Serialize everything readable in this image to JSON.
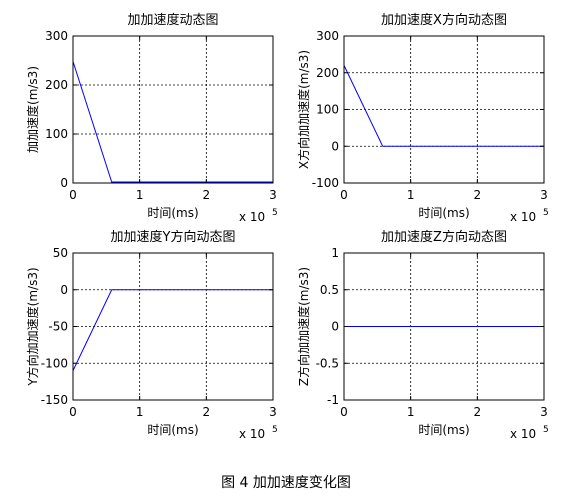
{
  "figure_caption": "图 4  加加速度变化图",
  "chart_data": [
    {
      "type": "line",
      "title": "加加速度动态图",
      "xlabel": "时间(ms)",
      "ylabel": "加加速度(m/s3)",
      "x_multiplier": "x 10",
      "x_exponent": "5",
      "xlim": [
        0,
        3
      ],
      "ylim": [
        0,
        300
      ],
      "xticks": [
        0,
        1,
        2,
        3
      ],
      "yticks": [
        0,
        100,
        200,
        300
      ],
      "grid": true,
      "line_color": "#0000ff",
      "series": [
        {
          "x": [
            0,
            0.58,
            3
          ],
          "y": [
            248,
            2,
            2
          ]
        }
      ]
    },
    {
      "type": "line",
      "title": "加加速度X方向动态图",
      "xlabel": "时间(ms)",
      "ylabel": "X方向加加速度(m/s3)",
      "x_multiplier": "x 10",
      "x_exponent": "5",
      "xlim": [
        0,
        3
      ],
      "ylim": [
        -100,
        300
      ],
      "xticks": [
        0,
        1,
        2,
        3
      ],
      "yticks": [
        -100,
        0,
        100,
        200,
        300
      ],
      "grid": true,
      "line_color": "#0000ff",
      "series": [
        {
          "x": [
            0,
            0.58,
            3
          ],
          "y": [
            220,
            0,
            0
          ]
        }
      ]
    },
    {
      "type": "line",
      "title": "加加速度Y方向动态图",
      "xlabel": "时间(ms)",
      "ylabel": "Y方向加加速度(m/s3)",
      "x_multiplier": "x 10",
      "x_exponent": "5",
      "xlim": [
        0,
        3
      ],
      "ylim": [
        -150,
        50
      ],
      "xticks": [
        0,
        1,
        2,
        3
      ],
      "yticks": [
        -150,
        -100,
        -50,
        0,
        50
      ],
      "grid": true,
      "line_color": "#0000ff",
      "series": [
        {
          "x": [
            0,
            0.58,
            3
          ],
          "y": [
            -110,
            0,
            0
          ]
        }
      ]
    },
    {
      "type": "line",
      "title": "加加速度Z方向动态图",
      "xlabel": "时间(ms)",
      "ylabel": "Z方向加加速度(m/s3)",
      "x_multiplier": "x 10",
      "x_exponent": "5",
      "xlim": [
        0,
        3
      ],
      "ylim": [
        -1,
        1
      ],
      "xticks": [
        0,
        1,
        2,
        3
      ],
      "yticks": [
        -1,
        -0.5,
        0,
        0.5,
        1
      ],
      "grid": true,
      "line_color": "#0000ff",
      "series": [
        {
          "x": [
            0,
            3
          ],
          "y": [
            0,
            0
          ]
        }
      ]
    }
  ]
}
